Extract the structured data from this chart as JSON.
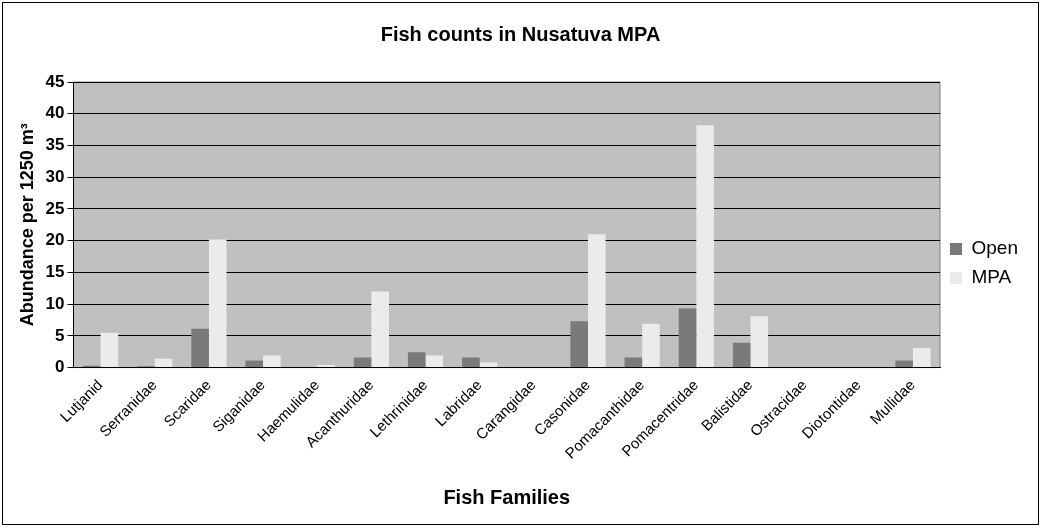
{
  "chart_data": {
    "type": "bar",
    "title": "Fish counts in Nusatuva MPA",
    "xlabel": "Fish Families",
    "ylabel": "Abundance per 1250 m³",
    "categories": [
      "Lutjanid",
      "Serranidae",
      "Scaridae",
      "Siganidae",
      "Haemulidae",
      "Acanthuridae",
      "Lethrinidae",
      "Labridae",
      "Carangidae",
      "Casonidae",
      "Pomacanthidae",
      "Pomacentridae",
      "Balistidae",
      "Ostracidae",
      "Diotontidae",
      "Mullidae"
    ],
    "series": [
      {
        "name": "Open",
        "color": "#7a7a7a",
        "values": [
          0.3,
          0.2,
          6.1,
          1.1,
          0,
          1.6,
          2.4,
          1.6,
          0,
          7.3,
          1.6,
          9.3,
          3.9,
          0,
          0,
          1.1
        ]
      },
      {
        "name": "MPA",
        "color": "#ebebeb",
        "values": [
          5.5,
          1.4,
          20.2,
          1.9,
          0.4,
          12,
          1.9,
          0.8,
          0,
          21,
          6.9,
          38.2,
          8.1,
          0,
          0,
          3.1
        ]
      }
    ],
    "ylim": [
      0,
      45
    ],
    "yticks": [
      0,
      5,
      10,
      15,
      20,
      25,
      30,
      35,
      40,
      45
    ],
    "grid": "y",
    "legend": "right"
  }
}
